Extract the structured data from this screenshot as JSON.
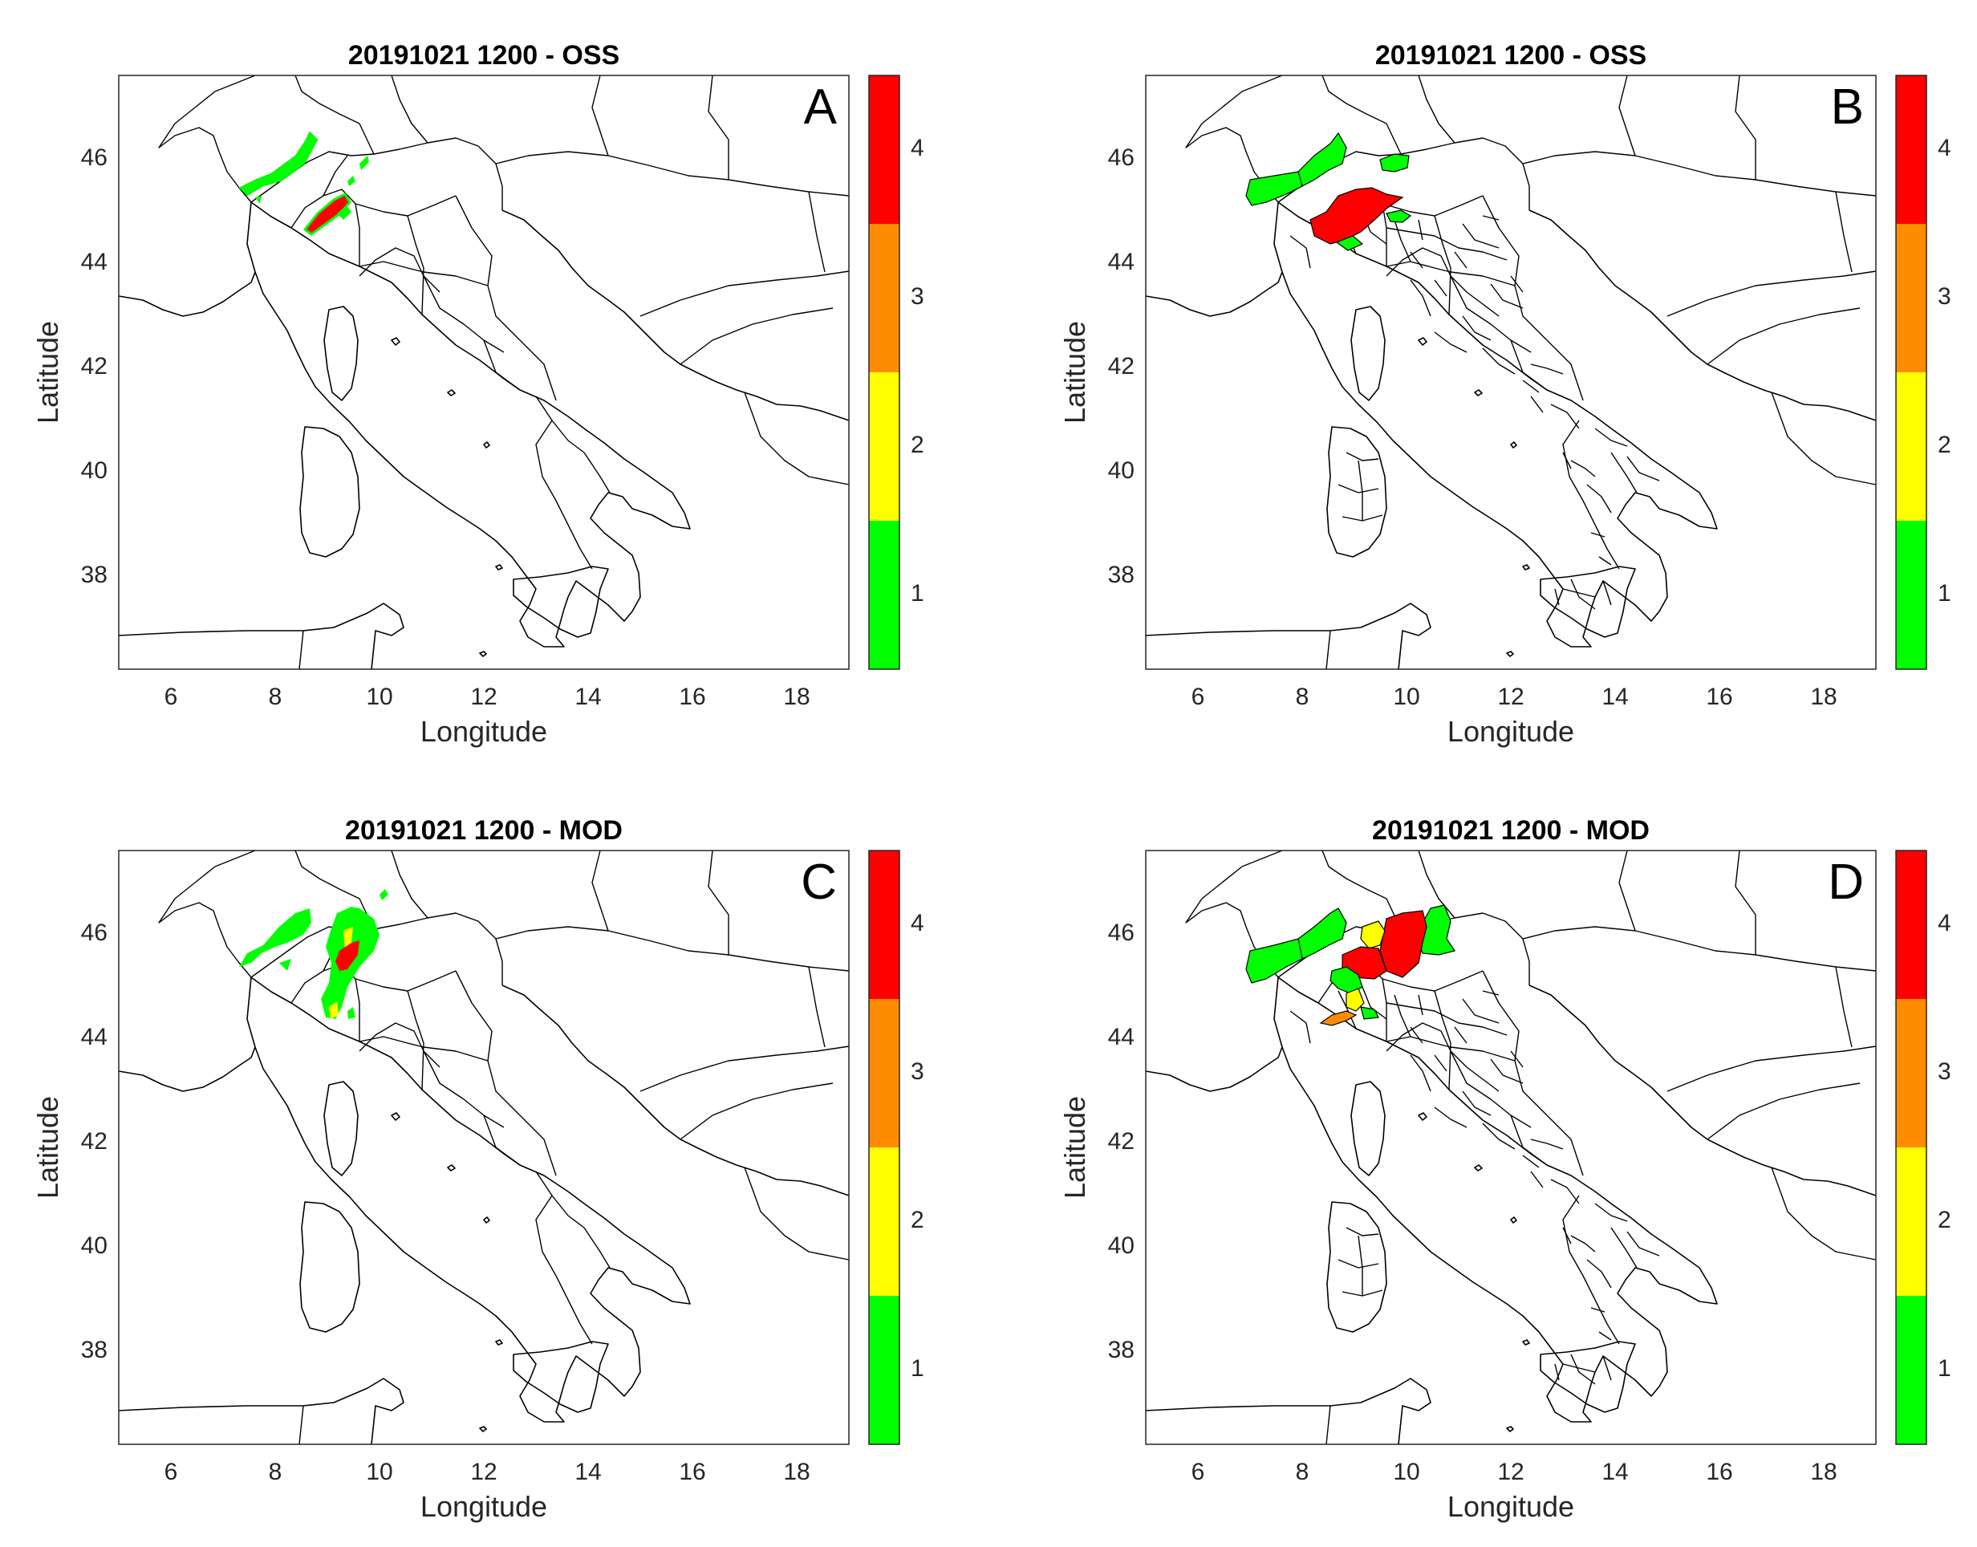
{
  "figure": {
    "colors": {
      "1": "#00ff00",
      "2": "#ffff00",
      "3": "#ff8c00",
      "4": "#ff0000"
    },
    "panels": [
      {
        "id": "A",
        "title": "20191021 1200 - OSS",
        "letter": "A",
        "xlabel": "Longitude",
        "ylabel": "Latitude",
        "mode": "grid"
      },
      {
        "id": "B",
        "title": "20191021 1200 - OSS",
        "letter": "B",
        "xlabel": "Longitude",
        "ylabel": "Latitude",
        "mode": "region"
      },
      {
        "id": "C",
        "title": "20191021 1200 - MOD",
        "letter": "C",
        "xlabel": "Longitude",
        "ylabel": "Latitude",
        "mode": "grid"
      },
      {
        "id": "D",
        "title": "20191021 1200 - MOD",
        "letter": "D",
        "xlabel": "Longitude",
        "ylabel": "Latitude",
        "mode": "region"
      }
    ],
    "x_ticks": [
      "6",
      "8",
      "10",
      "12",
      "14",
      "16",
      "18"
    ],
    "y_ticks": [
      "46",
      "44",
      "42",
      "40",
      "38"
    ],
    "colorbar_ticks": [
      "4",
      "3",
      "2",
      "1"
    ]
  },
  "chart_data": {
    "type": "heatmap",
    "xlim": [
      5,
      19
    ],
    "ylim": [
      36.2,
      47.6
    ],
    "x_ticks": [
      6,
      8,
      10,
      12,
      14,
      16,
      18
    ],
    "y_ticks": [
      38,
      40,
      42,
      44,
      46
    ],
    "colorbar": {
      "levels": [
        1,
        2,
        3,
        4
      ],
      "range": [
        0.5,
        4.5
      ]
    },
    "panels": {
      "A": {
        "cells": [
          [
            8.5,
            46.2,
            1
          ],
          [
            8.2,
            45.95,
            1
          ],
          [
            7.6,
            45.6,
            1
          ],
          [
            8.0,
            45.6,
            1
          ],
          [
            7.0,
            45.1,
            1
          ],
          [
            9.35,
            45.85,
            1
          ],
          [
            9.1,
            45.3,
            1
          ],
          [
            8.85,
            44.8,
            4
          ],
          [
            9.1,
            45.0,
            4
          ],
          [
            9.3,
            45.2,
            4
          ]
        ]
      },
      "B": {
        "regions": [
          {
            "name": "",
            "lon": 8.2,
            "lat": 45.9,
            "level": 1
          },
          {
            "name": "",
            "lon": 7.3,
            "lat": 45.4,
            "level": 1
          },
          {
            "name": "",
            "lon": 9.8,
            "lat": 45.9,
            "level": 1
          },
          {
            "name": "",
            "lon": 9.1,
            "lat": 44.9,
            "level": 4
          },
          {
            "name": "",
            "lon": 10.0,
            "lat": 44.8,
            "level": 1
          }
        ]
      },
      "C": {
        "cells": [
          [
            8.6,
            46.2,
            1
          ],
          [
            8.0,
            45.7,
            1
          ],
          [
            7.3,
            45.6,
            1
          ],
          [
            9.3,
            45.8,
            1
          ],
          [
            9.2,
            45.2,
            1
          ],
          [
            9.4,
            45.6,
            4
          ],
          [
            9.2,
            46.0,
            2
          ],
          [
            9.0,
            44.5,
            2
          ],
          [
            9.2,
            44.3,
            1
          ]
        ]
      },
      "D": {
        "regions": [
          {
            "name": "",
            "lon": 8.2,
            "lat": 45.9,
            "level": 1
          },
          {
            "name": "",
            "lon": 7.3,
            "lat": 45.4,
            "level": 1
          },
          {
            "name": "",
            "lon": 10.4,
            "lat": 46.0,
            "level": 1
          },
          {
            "name": "",
            "lon": 9.6,
            "lat": 45.8,
            "level": 4
          },
          {
            "name": "",
            "lon": 9.1,
            "lat": 45.8,
            "level": 2
          },
          {
            "name": "",
            "lon": 9.0,
            "lat": 45.2,
            "level": 4
          },
          {
            "name": "",
            "lon": 8.9,
            "lat": 44.8,
            "level": 1
          },
          {
            "name": "",
            "lon": 9.0,
            "lat": 44.6,
            "level": 2
          },
          {
            "name": "",
            "lon": 8.6,
            "lat": 44.3,
            "level": 3
          }
        ]
      }
    }
  }
}
